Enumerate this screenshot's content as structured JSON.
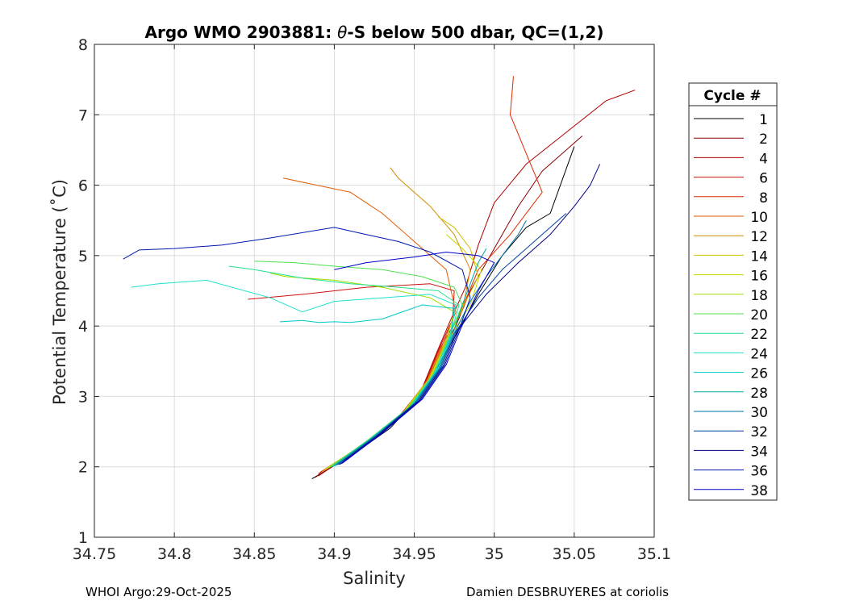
{
  "chart_data": {
    "type": "line",
    "title_prefix": "Argo WMO 2903881: ",
    "title_theta": "θ",
    "title_suffix": "-S below 500 dbar,  QC=(1,2)",
    "xlabel": "Salinity",
    "ylabel": "Potential Temperature (˚C)",
    "xlim": [
      34.75,
      35.1
    ],
    "ylim": [
      1,
      8
    ],
    "xticks": [
      34.75,
      34.8,
      34.85,
      34.9,
      34.95,
      35,
      35.05,
      35.1
    ],
    "xtick_labels": [
      "34.75",
      "34.8",
      "34.85",
      "34.9",
      "34.95",
      "35",
      "35.05",
      "35.1"
    ],
    "yticks": [
      1,
      2,
      3,
      4,
      5,
      6,
      7,
      8
    ],
    "ytick_labels": [
      "1",
      "2",
      "3",
      "4",
      "5",
      "6",
      "7",
      "8"
    ],
    "grid": true,
    "legend": {
      "title": "Cycle #",
      "position": "right-outside",
      "entries": [
        "1",
        "2",
        "4",
        "6",
        "8",
        "10",
        "12",
        "14",
        "16",
        "18",
        "20",
        "22",
        "24",
        "26",
        "28",
        "30",
        "32",
        "34",
        "36",
        "38"
      ],
      "colors": [
        "#000000",
        "#8b0000",
        "#b00000",
        "#cc1010",
        "#dd2a00",
        "#e05a00",
        "#d08c00",
        "#d0c000",
        "#c8d800",
        "#a0e000",
        "#50e050",
        "#20e090",
        "#20e0d0",
        "#00c8c8",
        "#00a8a0",
        "#0070b0",
        "#0040a0",
        "#000080",
        "#0018b0",
        "#0000c8"
      ]
    },
    "series": [
      {
        "name": "1",
        "color": "#000000",
        "S": [
          34.886,
          34.91,
          34.935,
          34.955,
          34.968,
          34.978,
          34.99,
          35.005,
          35.02,
          35.035,
          35.05
        ],
        "T": [
          1.83,
          2.15,
          2.55,
          3.05,
          3.55,
          3.95,
          4.45,
          5.0,
          5.4,
          5.6,
          6.55
        ]
      },
      {
        "name": "2",
        "color": "#8b0000",
        "S": [
          34.888,
          34.912,
          34.937,
          34.956,
          34.966,
          34.976,
          34.985,
          35.0,
          35.015,
          35.03,
          35.055
        ],
        "T": [
          1.85,
          2.2,
          2.62,
          3.1,
          3.6,
          4.0,
          4.5,
          5.1,
          5.7,
          6.2,
          6.7
        ]
      },
      {
        "name": "4",
        "color": "#b00000",
        "S": [
          34.89,
          34.913,
          34.938,
          34.955,
          34.964,
          34.972,
          34.982,
          34.99,
          35.0,
          35.02,
          35.07,
          35.088
        ],
        "T": [
          1.87,
          2.22,
          2.65,
          3.12,
          3.62,
          4.05,
          4.55,
          5.15,
          5.75,
          6.3,
          7.2,
          7.35
        ]
      },
      {
        "name": "6",
        "color": "#cc1010",
        "S": [
          34.89,
          34.914,
          34.939,
          34.956,
          34.965,
          34.974,
          34.975,
          34.96,
          34.92,
          34.88,
          34.846
        ],
        "T": [
          1.9,
          2.25,
          2.67,
          3.15,
          3.65,
          4.1,
          4.5,
          4.6,
          4.55,
          4.45,
          4.38
        ]
      },
      {
        "name": "8",
        "color": "#dd2a00",
        "S": [
          34.891,
          34.915,
          34.94,
          34.957,
          34.966,
          34.978,
          34.99,
          35.01,
          35.03,
          35.01,
          35.012
        ],
        "T": [
          1.92,
          2.27,
          2.7,
          3.18,
          3.68,
          4.15,
          4.8,
          5.3,
          5.9,
          7.0,
          7.55
        ]
      },
      {
        "name": "10",
        "color": "#e05a00",
        "S": [
          34.892,
          34.916,
          34.941,
          34.958,
          34.967,
          34.976,
          34.97,
          34.95,
          34.93,
          34.91,
          34.868
        ],
        "T": [
          1.93,
          2.29,
          2.72,
          3.2,
          3.7,
          4.2,
          4.8,
          5.2,
          5.6,
          5.9,
          6.1
        ]
      },
      {
        "name": "12",
        "color": "#d08c00",
        "S": [
          34.893,
          34.917,
          34.942,
          34.958,
          34.968,
          34.98,
          34.985,
          34.975,
          34.96,
          34.94,
          34.935
        ],
        "T": [
          1.95,
          2.3,
          2.75,
          3.22,
          3.72,
          4.22,
          4.8,
          5.3,
          5.7,
          6.1,
          6.25
        ]
      },
      {
        "name": "14",
        "color": "#d0c000",
        "S": [
          34.894,
          34.918,
          34.943,
          34.959,
          34.969,
          34.98,
          34.99,
          34.985,
          34.975,
          34.965
        ],
        "T": [
          1.96,
          2.32,
          2.77,
          3.24,
          3.74,
          4.25,
          4.7,
          5.1,
          5.4,
          5.55
        ]
      },
      {
        "name": "16",
        "color": "#c8d800",
        "S": [
          34.895,
          34.919,
          34.944,
          34.96,
          34.97,
          34.985,
          34.992,
          34.98,
          34.97
        ],
        "T": [
          1.97,
          2.34,
          2.79,
          3.26,
          3.76,
          4.3,
          4.8,
          5.1,
          5.3
        ]
      },
      {
        "name": "18",
        "color": "#a0e000",
        "S": [
          34.896,
          34.92,
          34.945,
          34.961,
          34.97,
          34.975,
          34.96,
          34.93,
          34.9,
          34.87,
          34.86
        ],
        "T": [
          1.98,
          2.36,
          2.81,
          3.28,
          3.78,
          4.2,
          4.4,
          4.55,
          4.65,
          4.7,
          4.75
        ]
      },
      {
        "name": "20",
        "color": "#50e050",
        "S": [
          34.897,
          34.921,
          34.946,
          34.962,
          34.971,
          34.98,
          34.975,
          34.955,
          34.93,
          34.9,
          34.875,
          34.85
        ],
        "T": [
          1.99,
          2.38,
          2.83,
          3.3,
          3.8,
          4.3,
          4.55,
          4.7,
          4.8,
          4.85,
          4.9,
          4.92
        ]
      },
      {
        "name": "22",
        "color": "#20e090",
        "S": [
          34.898,
          34.922,
          34.947,
          34.962,
          34.972,
          34.978,
          34.965,
          34.94,
          34.91,
          34.88,
          34.85,
          34.834
        ],
        "T": [
          2.0,
          2.39,
          2.84,
          3.32,
          3.82,
          4.3,
          4.5,
          4.55,
          4.6,
          4.68,
          4.8,
          4.85
        ]
      },
      {
        "name": "24",
        "color": "#20e0d0",
        "S": [
          34.899,
          34.923,
          34.948,
          34.963,
          34.972,
          34.976,
          34.96,
          34.93,
          34.9,
          34.88,
          34.86,
          34.82,
          34.79,
          34.773
        ],
        "T": [
          2.0,
          2.4,
          2.86,
          3.34,
          3.84,
          4.3,
          4.45,
          4.4,
          4.35,
          4.2,
          4.4,
          4.65,
          4.6,
          4.55
        ]
      },
      {
        "name": "26",
        "color": "#00c8c8",
        "S": [
          34.9,
          34.924,
          34.949,
          34.964,
          34.973,
          34.975,
          34.955,
          34.93,
          34.91,
          34.9,
          34.89,
          34.88,
          34.866
        ],
        "T": [
          2.01,
          2.42,
          2.88,
          3.36,
          3.86,
          4.25,
          4.3,
          4.1,
          4.05,
          4.06,
          4.05,
          4.08,
          4.06
        ]
      },
      {
        "name": "28",
        "color": "#00a8a0",
        "S": [
          34.9,
          34.925,
          34.95,
          34.965,
          34.974,
          34.98,
          34.985,
          34.99,
          34.995
        ],
        "T": [
          2.02,
          2.43,
          2.9,
          3.38,
          3.88,
          4.3,
          4.6,
          4.9,
          5.1
        ]
      },
      {
        "name": "30",
        "color": "#0070b0",
        "S": [
          34.901,
          34.926,
          34.951,
          34.966,
          34.975,
          34.985,
          34.995,
          35.005,
          35.015,
          35.02
        ],
        "T": [
          2.02,
          2.44,
          2.92,
          3.4,
          3.9,
          4.35,
          4.7,
          5.0,
          5.3,
          5.5
        ]
      },
      {
        "name": "32",
        "color": "#0040a0",
        "S": [
          34.902,
          34.927,
          34.952,
          34.967,
          34.976,
          34.99,
          35.005,
          35.02,
          35.035,
          35.045
        ],
        "T": [
          2.03,
          2.45,
          2.93,
          3.42,
          3.92,
          4.4,
          4.8,
          5.1,
          5.4,
          5.6
        ]
      },
      {
        "name": "34",
        "color": "#000080",
        "S": [
          34.903,
          34.928,
          34.953,
          34.968,
          34.977,
          34.995,
          35.015,
          35.035,
          35.05,
          35.06,
          35.066
        ],
        "T": [
          2.03,
          2.46,
          2.94,
          3.43,
          3.94,
          4.45,
          4.9,
          5.3,
          5.7,
          6.0,
          6.3
        ]
      },
      {
        "name": "36",
        "color": "#0018b0",
        "S": [
          34.904,
          34.929,
          34.954,
          34.969,
          34.978,
          34.985,
          34.98,
          34.96,
          34.94,
          34.92,
          34.9,
          34.86,
          34.83,
          34.8,
          34.778,
          34.768
        ],
        "T": [
          2.04,
          2.47,
          2.95,
          3.44,
          3.95,
          4.4,
          4.8,
          5.05,
          5.2,
          5.3,
          5.4,
          5.25,
          5.15,
          5.1,
          5.08,
          4.95
        ]
      },
      {
        "name": "38",
        "color": "#0000c8",
        "S": [
          34.905,
          34.93,
          34.955,
          34.97,
          34.979,
          34.99,
          35.0,
          34.99,
          34.97,
          34.95,
          34.92,
          34.9
        ],
        "T": [
          2.05,
          2.48,
          2.96,
          3.45,
          3.96,
          4.5,
          4.9,
          5.0,
          5.05,
          4.98,
          4.9,
          4.8
        ]
      }
    ]
  },
  "footer": {
    "left": "WHOI Argo:29-Oct-2025",
    "right": "Damien DESBRUYERES at coriolis"
  }
}
